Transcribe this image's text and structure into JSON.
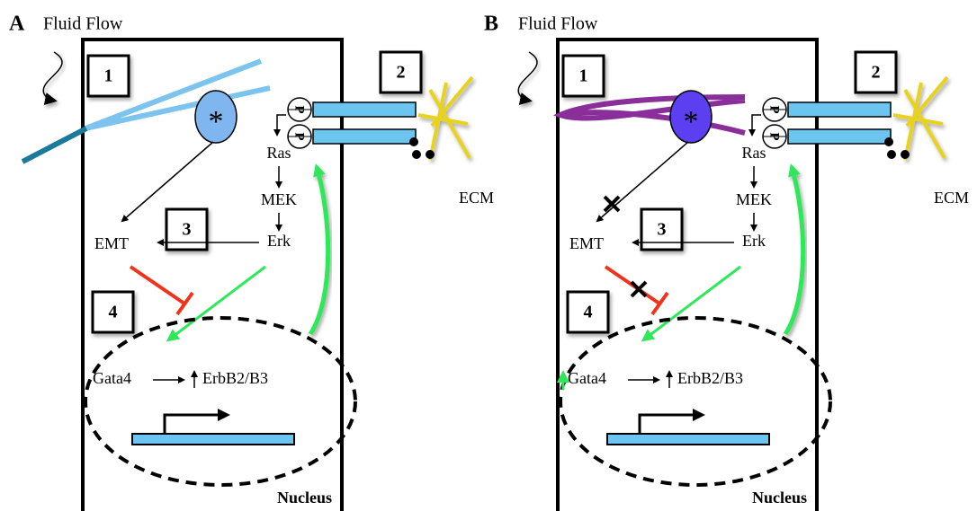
{
  "panels": [
    {
      "label": "A",
      "flow_label": "Fluid Flow",
      "boxes": [
        "1",
        "2",
        "3",
        "4"
      ],
      "cilium_marker": "*",
      "phosphates": [
        "P",
        "P"
      ],
      "ecm": "ECM",
      "pathway": [
        "Ras",
        "MEK",
        "Erk"
      ],
      "emt": "EMT",
      "gata4": "Gata4",
      "target": "ErbB2/B3",
      "nucleus": "Nucleus"
    },
    {
      "label": "B",
      "flow_label": "Fluid Flow",
      "boxes": [
        "1",
        "2",
        "3",
        "4"
      ],
      "cilium_marker": "*",
      "phosphates": [
        "P",
        "P"
      ],
      "ecm": "ECM",
      "pathway": [
        "Ras",
        "MEK",
        "Erk"
      ],
      "emt": "EMT",
      "gata4": "Gata4",
      "target": "ErbB2/B3",
      "nucleus": "Nucleus"
    }
  ]
}
